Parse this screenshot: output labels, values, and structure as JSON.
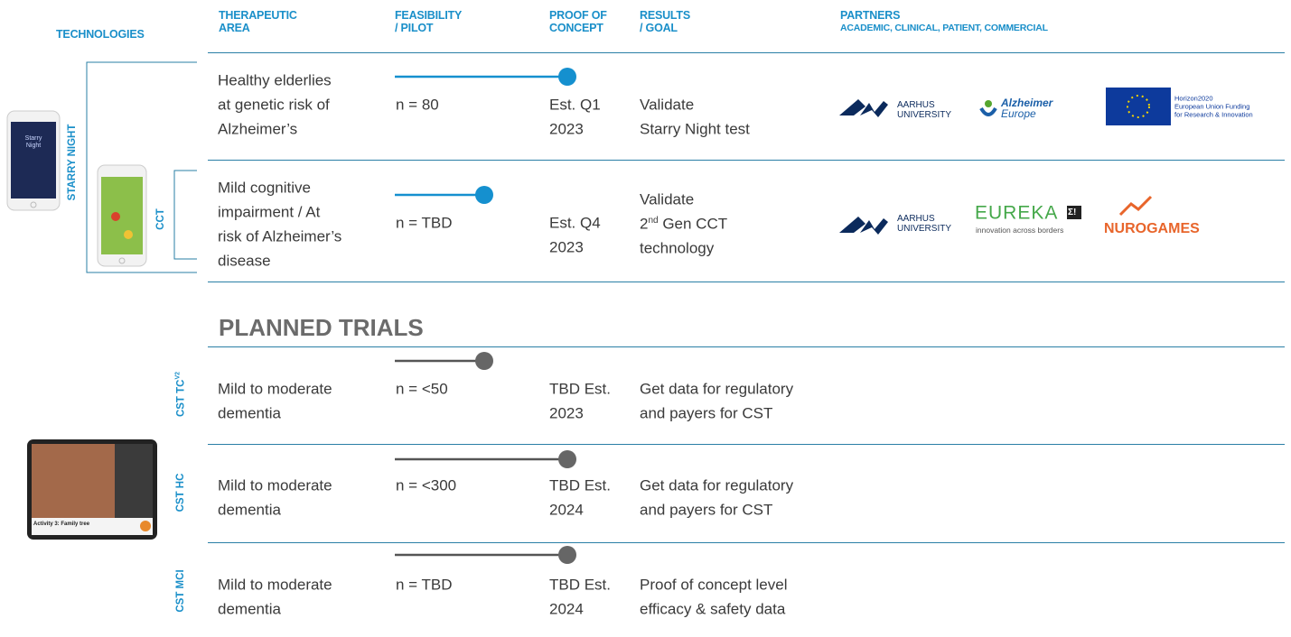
{
  "header": {
    "columns": [
      {
        "lines": [
          "TECHNOLOGIES"
        ]
      },
      {
        "lines": [
          "THERAPEUTIC",
          "AREA"
        ]
      },
      {
        "lines": [
          "FEASIBILITY",
          "/ PILOT"
        ]
      },
      {
        "lines": [
          "PROOF OF",
          "CONCEPT"
        ]
      },
      {
        "lines": [
          "RESULTS",
          "/ GOAL"
        ]
      },
      {
        "lines": [
          "PARTNERS"
        ],
        "subtitle": "ACADEMIC, CLINICAL, PATIENT, COMMERCIAL"
      }
    ]
  },
  "technologies": {
    "starry_night": {
      "label": "STARRY NIGHT",
      "screen_text": [
        "Starry",
        "Night"
      ]
    },
    "cct": {
      "label": "CCT"
    }
  },
  "current_trials": [
    {
      "area": [
        "Healthy elderlies",
        "at genetic risk of",
        "Alzheimer’s"
      ],
      "n": "n = 80",
      "proof_of_concept": [
        "Est. Q1",
        "2023"
      ],
      "results": [
        "Validate",
        "Starry Night test"
      ],
      "partners": [
        {
          "lines": [
            "AARHUS",
            "UNIVERSITY"
          ]
        },
        {
          "lines": [
            "Alzheimer",
            "Europe"
          ]
        },
        {
          "lines": [
            "Horizon2020",
            "European Union Funding",
            "for Research & Innovation"
          ]
        }
      ]
    },
    {
      "area": [
        "Mild cognitive",
        "impairment / At",
        "risk of Alzheimer’s",
        "disease"
      ],
      "n": "n = TBD",
      "proof_of_concept": [
        "Est. Q4",
        "2023"
      ],
      "results": [
        "Validate",
        {
          "base": "2",
          "sup": "nd",
          "rest": "Gen CCT"
        },
        "technology"
      ],
      "partners": [
        {
          "lines": [
            "AARHUS",
            "UNIVERSITY"
          ]
        },
        {
          "lines": [
            "EUREKA",
            "innovation across borders"
          ],
          "mark": "Σ!"
        },
        {
          "lines": [
            "NUROGAMES"
          ]
        }
      ]
    }
  ],
  "planned_trials": {
    "title": "PLANNED TRIALS",
    "screen_text": "Activity 3: Family tree",
    "rows": [
      {
        "technology": {
          "label": "CST TC",
          "sup": "V2"
        },
        "area": [
          "Mild to moderate",
          "dementia"
        ],
        "n": "n = <50",
        "proof_of_concept": [
          "TBD Est.",
          "2023"
        ],
        "results": [
          "Get data for regulatory",
          "and payers for CST"
        ]
      },
      {
        "technology": {
          "label": "CST HC"
        },
        "area": [
          "Mild to moderate",
          "dementia"
        ],
        "n": "n = <300",
        "proof_of_concept": [
          "TBD Est.",
          "2024"
        ],
        "results": [
          "Get data for regulatory",
          "and payers for CST"
        ]
      },
      {
        "technology": {
          "label": "CST MCI"
        },
        "area": [
          "Mild to moderate",
          "dementia"
        ],
        "n": "n = TBD",
        "proof_of_concept": [
          "TBD Est.",
          "2024"
        ],
        "results": [
          "Proof of concept level",
          "efficacy & safety data"
        ]
      }
    ]
  }
}
